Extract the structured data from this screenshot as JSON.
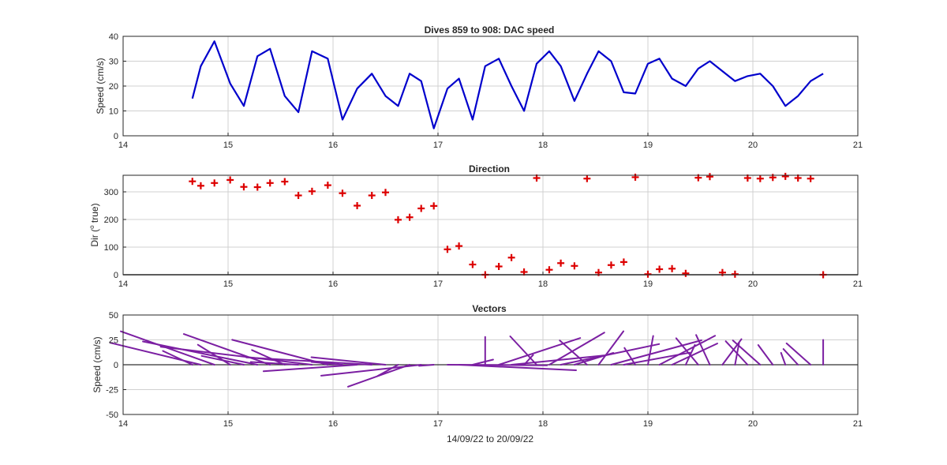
{
  "figure_title": "Dives 859 to 908: DAC speed",
  "colors": {
    "speed": "#0000CC",
    "direction": "#DD0000",
    "vectors": "#7B1FA2",
    "axes": "#262626",
    "grid": "#D0D0D0"
  },
  "chart_data": [
    {
      "type": "line",
      "title": "Dives 859 to 908: DAC speed",
      "xlabel": "",
      "ylabel": "Speed (cm/s)",
      "xlim": [
        14,
        21
      ],
      "ylim": [
        0,
        40
      ],
      "xticks": [
        14,
        15,
        16,
        17,
        18,
        19,
        20,
        21
      ],
      "yticks": [
        0,
        10,
        20,
        30,
        40
      ],
      "grid": true,
      "x": [
        14.66,
        14.74,
        14.87,
        15.02,
        15.15,
        15.28,
        15.4,
        15.54,
        15.67,
        15.8,
        15.95,
        16.09,
        16.23,
        16.37,
        16.5,
        16.62,
        16.73,
        16.84,
        16.96,
        17.09,
        17.2,
        17.33,
        17.45,
        17.58,
        17.7,
        17.82,
        17.94,
        18.06,
        18.17,
        18.3,
        18.42,
        18.53,
        18.65,
        18.77,
        18.88,
        19.0,
        19.11,
        19.23,
        19.36,
        19.48,
        19.59,
        19.71,
        19.83,
        19.95,
        20.07,
        20.19,
        20.31,
        20.43,
        20.55,
        20.67
      ],
      "series": [
        {
          "values": [
            15,
            28,
            38,
            21,
            12,
            32,
            35,
            16,
            9.5,
            34,
            31,
            6.5,
            19,
            25,
            16,
            12,
            25,
            22,
            3,
            19,
            23,
            6.5,
            28,
            31,
            20,
            10,
            29,
            34,
            28,
            14,
            25,
            34,
            30,
            17.5,
            17,
            29,
            31,
            23,
            20,
            27,
            30,
            26,
            22,
            24,
            25,
            20,
            12,
            16,
            22,
            25
          ]
        }
      ]
    },
    {
      "type": "scatter",
      "title": "Direction",
      "xlabel": "",
      "ylabel": "Dir (o true)",
      "xlim": [
        14,
        21
      ],
      "ylim": [
        0,
        360
      ],
      "xticks": [
        14,
        15,
        16,
        17,
        18,
        19,
        20,
        21
      ],
      "yticks": [
        0,
        100,
        200,
        300
      ],
      "grid": true,
      "x": [
        14.66,
        14.74,
        14.87,
        15.02,
        15.15,
        15.28,
        15.4,
        15.54,
        15.67,
        15.8,
        15.95,
        16.09,
        16.23,
        16.37,
        16.5,
        16.62,
        16.73,
        16.84,
        16.96,
        17.09,
        17.2,
        17.33,
        17.45,
        17.58,
        17.7,
        17.82,
        17.94,
        18.06,
        18.17,
        18.3,
        18.42,
        18.53,
        18.65,
        18.77,
        18.88,
        19.0,
        19.11,
        19.23,
        19.36,
        19.48,
        19.59,
        19.71,
        19.83,
        19.95,
        20.07,
        20.19,
        20.31,
        20.43,
        20.55,
        20.67
      ],
      "series": [
        {
          "marker": "+",
          "values": [
            338,
            322,
            332,
            343,
            318,
            317,
            332,
            337,
            287,
            302,
            324,
            295,
            250,
            287,
            298,
            199,
            208,
            240,
            249,
            92,
            104,
            37,
            0,
            30,
            62,
            10,
            350,
            18,
            42,
            32,
            348,
            8,
            35,
            46,
            353,
            2,
            20,
            22,
            5,
            351,
            355,
            8,
            2,
            350,
            348,
            352,
            356,
            350,
            348,
            0
          ]
        }
      ]
    },
    {
      "type": "line",
      "title": "Vectors",
      "xlabel": "14/09/22 to 20/09/22",
      "ylabel": "Speed (cm/s)",
      "xlim": [
        14,
        21
      ],
      "ylim": [
        -50,
        50
      ],
      "xticks": [
        14,
        15,
        16,
        17,
        18,
        19,
        20,
        21
      ],
      "yticks": [
        -50,
        -25,
        0,
        25,
        50
      ],
      "grid": true,
      "note_stick": "Each stick starts on the zero line at the dive time and points along the current direction (from the Direction panel); stick length follows the speed from the top panel."
    }
  ]
}
